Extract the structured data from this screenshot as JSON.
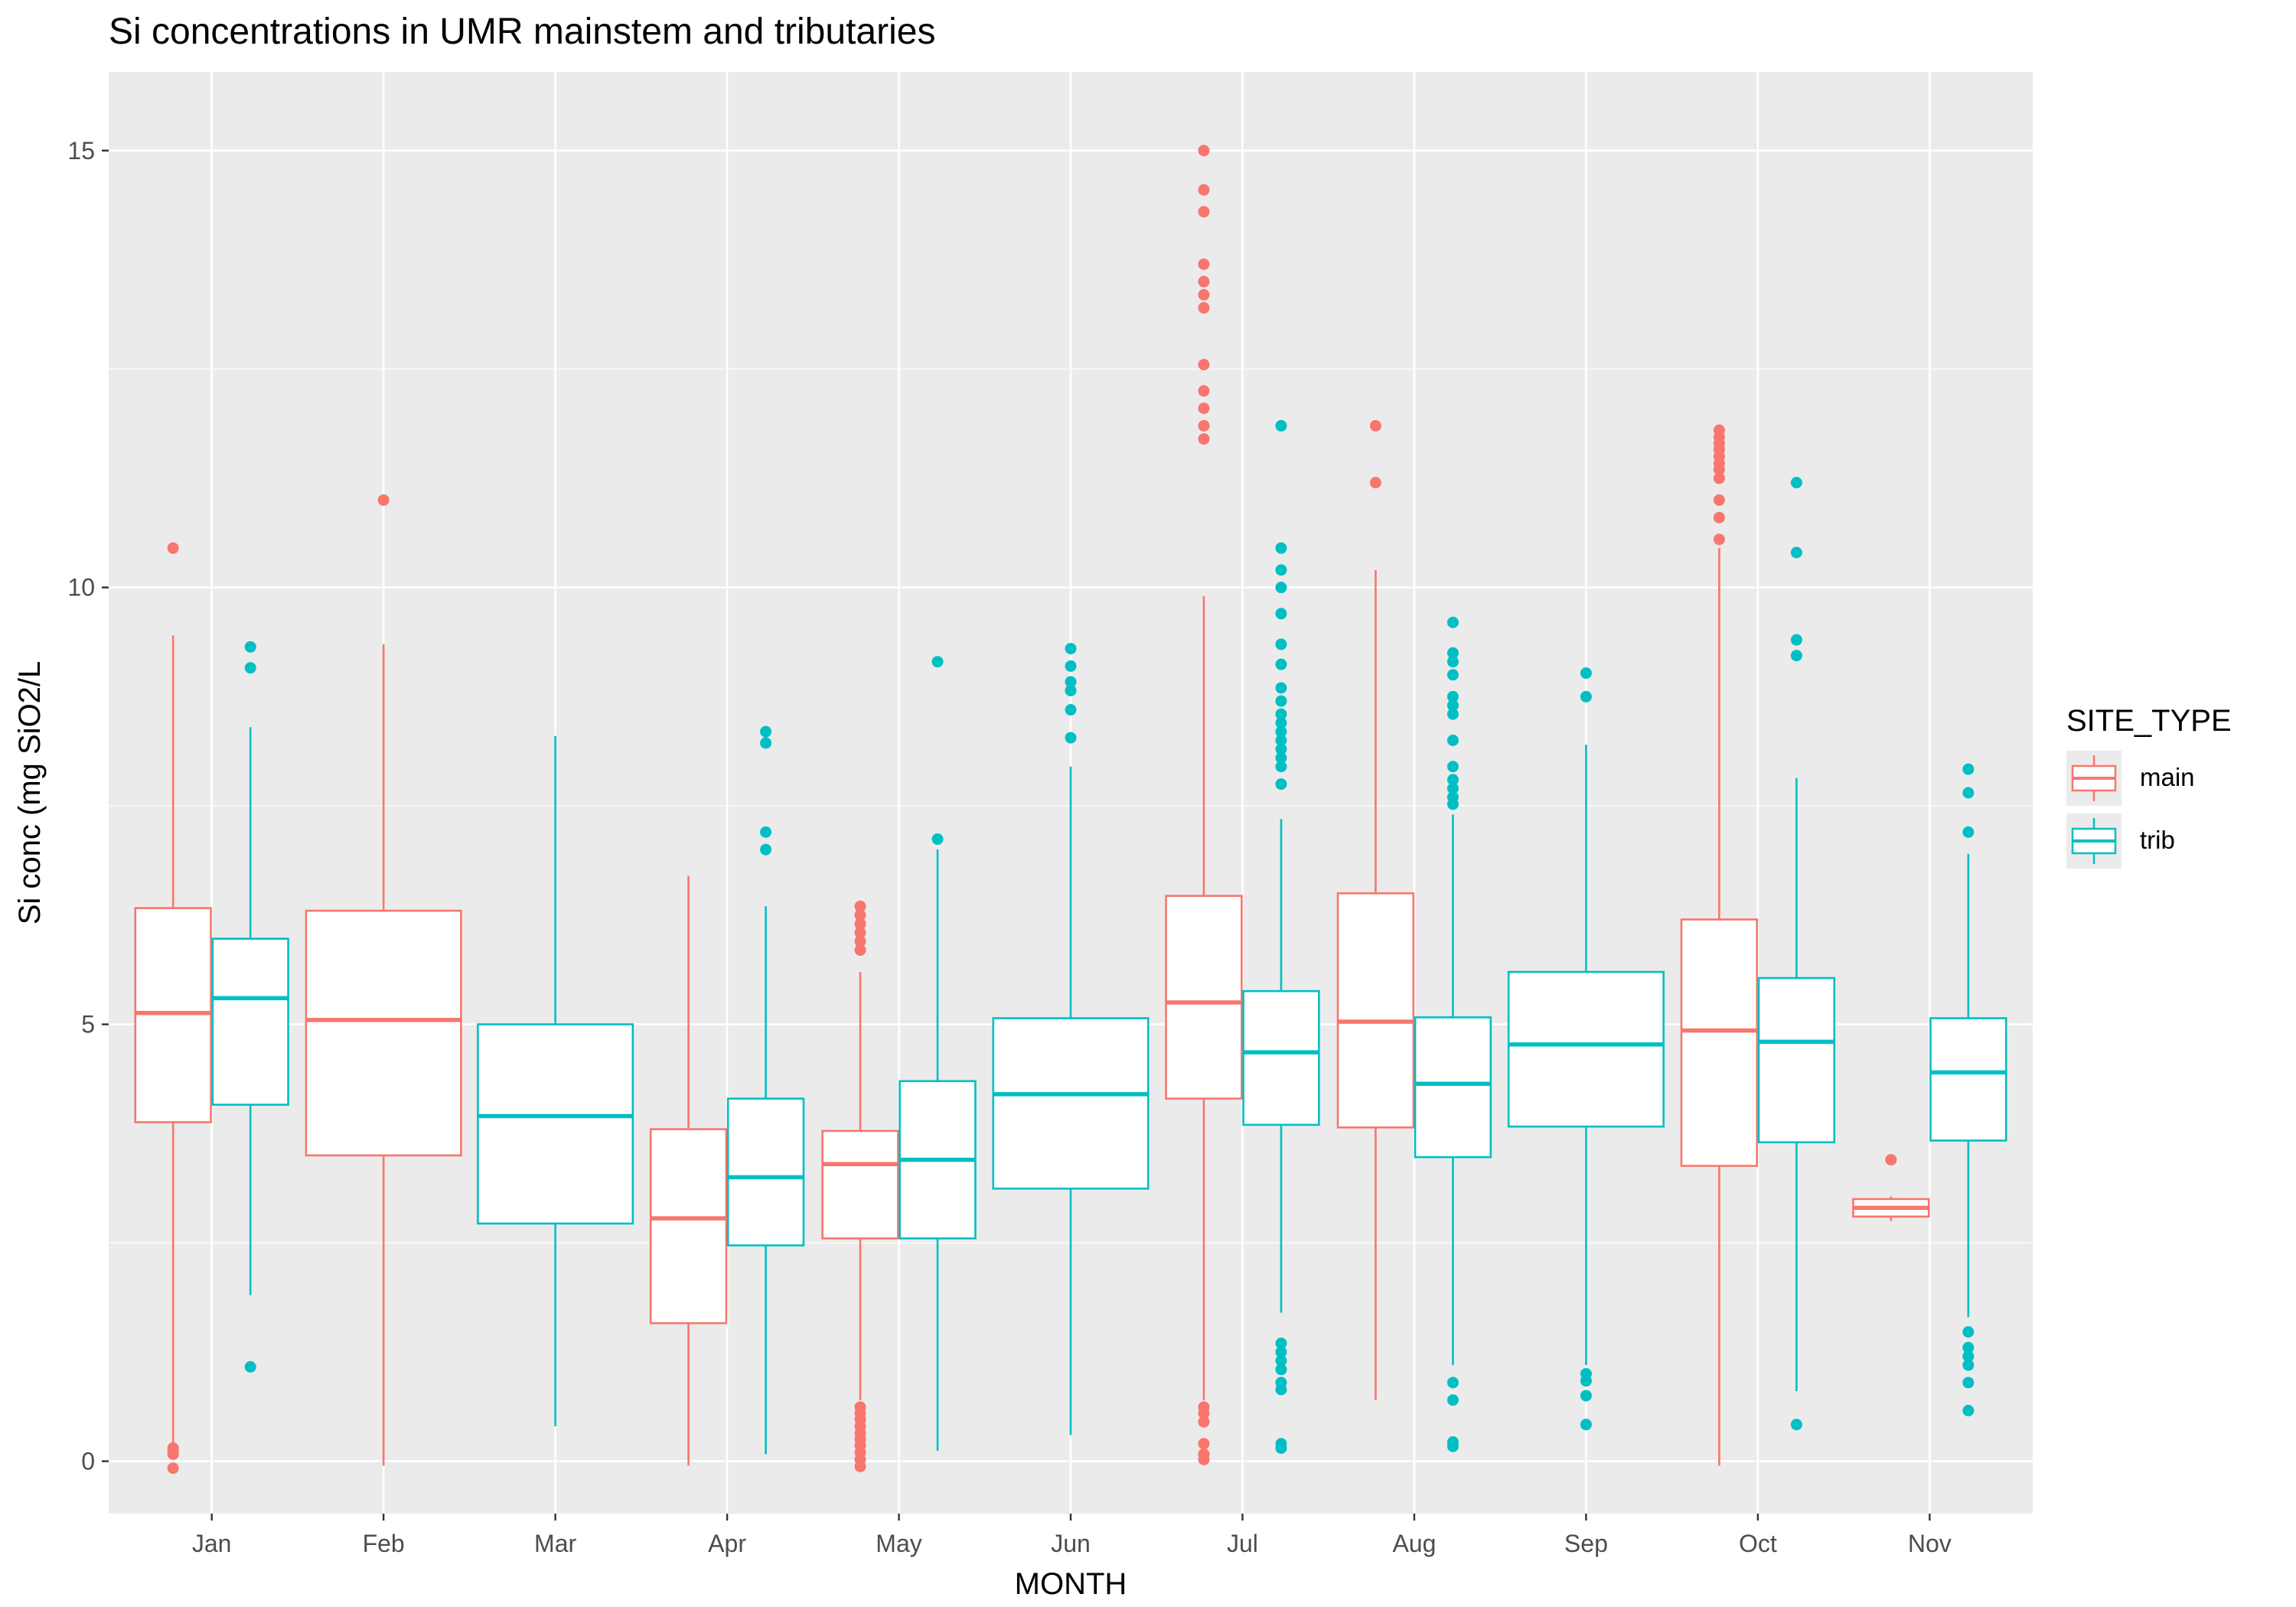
{
  "chart_data": {
    "type": "boxplot",
    "title": "Si concentrations in UMR mainstem and tributaries",
    "xlabel": "MONTH",
    "ylabel": "Si conc (mg SiO2/L",
    "ylim": [
      -0.6,
      15.9
    ],
    "yticks": [
      0,
      5,
      10,
      15
    ],
    "categories": [
      "Jan",
      "Feb",
      "Mar",
      "Apr",
      "May",
      "Jun",
      "Jul",
      "Aug",
      "Sep",
      "Oct",
      "Nov"
    ],
    "grid": true,
    "legend": {
      "title": "SITE_TYPE",
      "position": "right",
      "entries": [
        "main",
        "trib"
      ]
    },
    "colors": {
      "main": "#f8766d",
      "trib": "#00bfc4",
      "panel": "#ebebeb",
      "grid": "#ffffff"
    },
    "series": [
      {
        "name": "main",
        "boxes": [
          {
            "month": "Jan",
            "min": 0.15,
            "q1": 3.88,
            "median": 5.13,
            "q3": 6.33,
            "max": 9.45,
            "outliers": [
              10.45,
              0.15,
              0.12,
              0.08,
              -0.08
            ]
          },
          {
            "month": "Feb",
            "min": -0.05,
            "q1": 3.5,
            "median": 5.05,
            "q3": 6.3,
            "max": 9.35,
            "outliers": [
              11.0
            ]
          },
          {
            "month": "Apr",
            "min": -0.05,
            "q1": 1.58,
            "median": 2.78,
            "q3": 3.8,
            "max": 6.7,
            "outliers": []
          },
          {
            "month": "May",
            "min": 0.7,
            "q1": 2.55,
            "median": 3.4,
            "q3": 3.78,
            "max": 5.6,
            "outliers": [
              6.35,
              6.25,
              6.15,
              6.05,
              5.95,
              5.85,
              0.62,
              0.55,
              0.48,
              0.4,
              0.32,
              0.25,
              0.18,
              0.1,
              0.02,
              -0.06
            ]
          },
          {
            "month": "Jul",
            "min": 0.7,
            "q1": 4.15,
            "median": 5.25,
            "q3": 6.47,
            "max": 9.9,
            "outliers": [
              15.0,
              14.55,
              14.3,
              13.7,
              13.5,
              13.35,
              13.2,
              12.55,
              12.25,
              12.05,
              11.85,
              11.7,
              0.62,
              0.55,
              0.45,
              0.2,
              0.08,
              0.02
            ]
          },
          {
            "month": "Aug",
            "min": 0.7,
            "q1": 3.82,
            "median": 5.03,
            "q3": 6.5,
            "max": 10.2,
            "outliers": [
              11.85,
              11.2
            ]
          },
          {
            "month": "Oct",
            "min": -0.05,
            "q1": 3.38,
            "median": 4.93,
            "q3": 6.2,
            "max": 10.45,
            "outliers": [
              11.8,
              11.72,
              11.65,
              11.58,
              11.5,
              11.42,
              11.35,
              11.25,
              11.0,
              10.8,
              10.55
            ]
          },
          {
            "month": "Nov",
            "min": 2.75,
            "q1": 2.8,
            "median": 2.9,
            "q3": 3.0,
            "max": 3.03,
            "outliers": [
              3.45
            ]
          }
        ]
      },
      {
        "name": "trib",
        "boxes": [
          {
            "month": "Jan",
            "min": 1.9,
            "q1": 4.08,
            "median": 5.3,
            "q3": 5.98,
            "max": 8.4,
            "outliers": [
              9.32,
              9.08,
              1.08
            ]
          },
          {
            "month": "Mar",
            "min": 0.4,
            "q1": 2.72,
            "median": 3.95,
            "q3": 5.0,
            "max": 8.3,
            "outliers": []
          },
          {
            "month": "Apr",
            "min": 0.08,
            "q1": 2.47,
            "median": 3.25,
            "q3": 4.15,
            "max": 6.35,
            "outliers": [
              8.35,
              8.22,
              7.2,
              7.0
            ]
          },
          {
            "month": "May",
            "min": 0.12,
            "q1": 2.55,
            "median": 3.45,
            "q3": 4.35,
            "max": 7.0,
            "outliers": [
              9.15,
              7.12
            ]
          },
          {
            "month": "Jun",
            "min": 0.3,
            "q1": 3.12,
            "median": 4.2,
            "q3": 5.07,
            "max": 7.95,
            "outliers": [
              9.3,
              9.1,
              8.92,
              8.82,
              8.6,
              8.28
            ]
          },
          {
            "month": "Jul",
            "min": 1.7,
            "q1": 3.85,
            "median": 4.68,
            "q3": 5.38,
            "max": 7.35,
            "outliers": [
              11.85,
              10.45,
              10.2,
              10.0,
              9.7,
              9.35,
              9.12,
              8.85,
              8.7,
              8.55,
              8.45,
              8.35,
              8.25,
              8.15,
              8.05,
              7.95,
              7.75,
              1.35,
              1.25,
              1.15,
              1.05,
              0.9,
              0.82,
              0.2,
              0.15
            ]
          },
          {
            "month": "Aug",
            "min": 1.1,
            "q1": 3.48,
            "median": 4.32,
            "q3": 5.08,
            "max": 7.4,
            "outliers": [
              9.6,
              9.25,
              9.15,
              9.0,
              8.75,
              8.65,
              8.55,
              8.25,
              7.95,
              7.8,
              7.7,
              7.6,
              7.52,
              0.9,
              0.7,
              0.22,
              0.17
            ]
          },
          {
            "month": "Sep",
            "min": 1.1,
            "q1": 3.83,
            "median": 4.77,
            "q3": 5.6,
            "max": 8.2,
            "outliers": [
              9.02,
              8.75,
              1.0,
              0.92,
              0.75,
              0.42
            ]
          },
          {
            "month": "Oct",
            "min": 0.8,
            "q1": 3.65,
            "median": 4.8,
            "q3": 5.53,
            "max": 7.82,
            "outliers": [
              11.2,
              10.4,
              9.4,
              9.22,
              0.42
            ]
          },
          {
            "month": "Nov",
            "min": 1.65,
            "q1": 3.67,
            "median": 4.45,
            "q3": 5.07,
            "max": 6.95,
            "outliers": [
              7.92,
              7.65,
              7.2,
              1.48,
              1.3,
              1.2,
              1.1,
              0.9,
              0.58
            ]
          }
        ]
      }
    ]
  }
}
